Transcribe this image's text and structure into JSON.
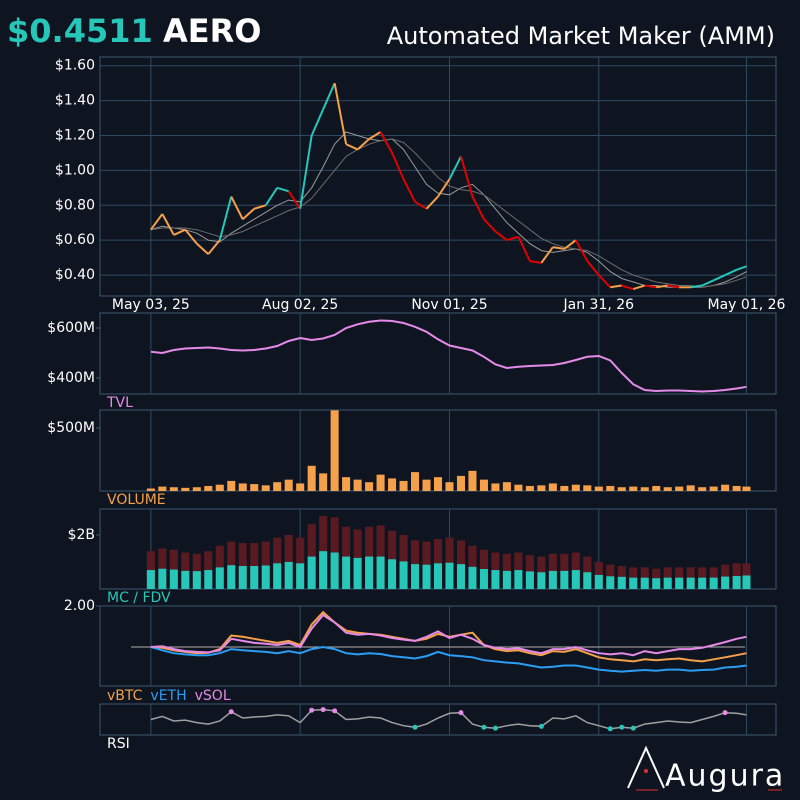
{
  "header": {
    "price": "$0.4511",
    "symbol": "AERO",
    "title": "Automated Market Maker (AMM)"
  },
  "watermark": "Augura",
  "chart_data": [
    {
      "type": "line",
      "x": [
        "2025-05-03",
        "2025-05-10",
        "2025-05-17",
        "2025-05-24",
        "2025-05-31",
        "2025-06-07",
        "2025-06-14",
        "2025-06-21",
        "2025-06-28",
        "2025-07-05",
        "2025-07-12",
        "2025-07-19",
        "2025-07-26",
        "2025-08-02",
        "2025-08-09",
        "2025-08-16",
        "2025-08-23",
        "2025-08-30",
        "2025-09-06",
        "2025-09-13",
        "2025-09-20",
        "2025-09-27",
        "2025-10-04",
        "2025-10-11",
        "2025-10-18",
        "2025-10-25",
        "2025-11-01",
        "2025-11-08",
        "2025-11-15",
        "2025-11-22",
        "2025-11-29",
        "2025-12-06",
        "2025-12-13",
        "2025-12-20",
        "2025-12-27",
        "2026-01-03",
        "2026-01-10",
        "2026-01-17",
        "2026-01-24",
        "2026-01-31",
        "2026-02-07",
        "2026-02-14",
        "2026-02-21",
        "2026-02-28",
        "2026-03-07",
        "2026-03-14",
        "2026-03-21",
        "2026-03-28",
        "2026-04-04",
        "2026-04-11",
        "2026-04-18",
        "2026-04-25",
        "2026-05-01"
      ],
      "xlim": [
        "2025-04-02",
        "2026-05-19"
      ],
      "xticks": [
        {
          "value": "2025-05-03",
          "label": "May 03, 25"
        },
        {
          "value": "2025-08-02",
          "label": "Aug 02, 25"
        },
        {
          "value": "2025-11-01",
          "label": "Nov 01, 25"
        },
        {
          "value": "2026-01-31",
          "label": "Jan 31, 26"
        },
        {
          "value": "2026-05-01",
          "label": "May 01, 26"
        }
      ],
      "ylim": [
        0.28,
        1.65
      ],
      "yticks": [
        {
          "value": 0.4,
          "label": "$0.40"
        },
        {
          "value": 0.6,
          "label": "$0.60"
        },
        {
          "value": 0.8,
          "label": "$0.80"
        },
        {
          "value": 1.0,
          "label": "$1.00"
        },
        {
          "value": 1.2,
          "label": "$1.20"
        },
        {
          "value": 1.4,
          "label": "$1.40"
        },
        {
          "value": 1.6,
          "label": "$1.60"
        }
      ],
      "grid": true,
      "series": [
        {
          "values": [
            0.66,
            0.75,
            0.63,
            0.66,
            0.58,
            0.52,
            0.6,
            0.85,
            0.72,
            0.78,
            0.8,
            0.9,
            0.88,
            0.78,
            1.2,
            1.35,
            1.5,
            1.15,
            1.12,
            1.18,
            1.22,
            1.1,
            0.95,
            0.82,
            0.78,
            0.85,
            0.95,
            1.08,
            0.85,
            0.72,
            0.65,
            0.6,
            0.62,
            0.48,
            0.47,
            0.56,
            0.55,
            0.6,
            0.48,
            0.4,
            0.33,
            0.34,
            0.32,
            0.34,
            0.33,
            0.34,
            0.33,
            0.33,
            0.34,
            0.37,
            0.4,
            0.43,
            0.45
          ],
          "colors": [
            "#f5a04a",
            "#f5a04a",
            "#f5a04a",
            "#f5a04a",
            "#f5a04a",
            "#f5a04a",
            "#f5a04a",
            "#26c6b8",
            "#f5a04a",
            "#f5a04a",
            "#f5a04a",
            "#26c6b8",
            "#26c6b8",
            "#e00000",
            "#26c6b8",
            "#26c6b8",
            "#26c6b8",
            "#f5a04a",
            "#f5a04a",
            "#f5a04a",
            "#f5a04a",
            "#e00000",
            "#e00000",
            "#e00000",
            "#e00000",
            "#f5a04a",
            "#f5a04a",
            "#26c6b8",
            "#e00000",
            "#e00000",
            "#e00000",
            "#e00000",
            "#e00000",
            "#e00000",
            "#e00000",
            "#f5a04a",
            "#f5a04a",
            "#f5a04a",
            "#e00000",
            "#e00000",
            "#e00000",
            "#f5a04a",
            "#e00000",
            "#f5a04a",
            "#e00000",
            "#f5a04a",
            "#e00000",
            "#f5a04a",
            "#26c6b8",
            "#26c6b8",
            "#26c6b8",
            "#26c6b8",
            "#26c6b8"
          ]
        }
      ],
      "moving_averages": [
        {
          "color": "#9a9a9a",
          "values": [
            0.66,
            0.68,
            0.67,
            0.66,
            0.64,
            0.6,
            0.59,
            0.64,
            0.68,
            0.72,
            0.76,
            0.8,
            0.83,
            0.82,
            0.9,
            1.02,
            1.15,
            1.22,
            1.2,
            1.18,
            1.17,
            1.18,
            1.12,
            1.02,
            0.92,
            0.87,
            0.86,
            0.9,
            0.92,
            0.86,
            0.78,
            0.7,
            0.64,
            0.58,
            0.54,
            0.53,
            0.54,
            0.55,
            0.53,
            0.48,
            0.42,
            0.38,
            0.36,
            0.34,
            0.34,
            0.33,
            0.33,
            0.33,
            0.33,
            0.34,
            0.36,
            0.39,
            0.42
          ]
        },
        {
          "color": "#6c6c6c",
          "values": [
            0.66,
            0.67,
            0.67,
            0.67,
            0.66,
            0.64,
            0.62,
            0.63,
            0.65,
            0.68,
            0.71,
            0.74,
            0.77,
            0.79,
            0.84,
            0.92,
            1.0,
            1.08,
            1.12,
            1.15,
            1.17,
            1.18,
            1.16,
            1.1,
            1.03,
            0.96,
            0.91,
            0.89,
            0.88,
            0.86,
            0.81,
            0.76,
            0.71,
            0.66,
            0.61,
            0.58,
            0.56,
            0.55,
            0.54,
            0.51,
            0.47,
            0.43,
            0.4,
            0.38,
            0.36,
            0.35,
            0.34,
            0.34,
            0.33,
            0.34,
            0.35,
            0.37,
            0.39
          ]
        }
      ]
    },
    {
      "type": "line",
      "label": "TVL",
      "label_color": "#e58ae8",
      "color": "#e58ae8",
      "ylim": [
        336000000.0,
        660000000.0
      ],
      "yticks": [
        {
          "value": 400000000.0,
          "label": "$400M"
        },
        {
          "value": 600000000.0,
          "label": "$600M"
        }
      ],
      "values": [
        505000000.0,
        500000000.0,
        512000000.0,
        518000000.0,
        520000000.0,
        522000000.0,
        518000000.0,
        512000000.0,
        510000000.0,
        512000000.0,
        518000000.0,
        528000000.0,
        548000000.0,
        560000000.0,
        552000000.0,
        558000000.0,
        572000000.0,
        600000000.0,
        615000000.0,
        625000000.0,
        630000000.0,
        628000000.0,
        620000000.0,
        605000000.0,
        585000000.0,
        555000000.0,
        530000000.0,
        520000000.0,
        510000000.0,
        485000000.0,
        455000000.0,
        440000000.0,
        445000000.0,
        448000000.0,
        450000000.0,
        452000000.0,
        460000000.0,
        472000000.0,
        485000000.0,
        488000000.0,
        470000000.0,
        420000000.0,
        375000000.0,
        352000000.0,
        348000000.0,
        350000000.0,
        350000000.0,
        348000000.0,
        346000000.0,
        348000000.0,
        352000000.0,
        358000000.0,
        365000000.0
      ]
    },
    {
      "type": "bar",
      "label": "VOLUME",
      "label_color": "#f5a04a",
      "color": "#f5a04a",
      "ylim": [
        0,
        643000000.0
      ],
      "yticks": [
        {
          "value": 500000000.0,
          "label": "$500M"
        }
      ],
      "values": [
        20000000.0,
        35000000.0,
        30000000.0,
        25000000.0,
        30000000.0,
        40000000.0,
        50000000.0,
        80000000.0,
        60000000.0,
        55000000.0,
        45000000.0,
        70000000.0,
        90000000.0,
        60000000.0,
        200000000.0,
        140000000.0,
        640000000.0,
        110000000.0,
        90000000.0,
        70000000.0,
        130000000.0,
        100000000.0,
        80000000.0,
        150000000.0,
        90000000.0,
        110000000.0,
        70000000.0,
        120000000.0,
        160000000.0,
        90000000.0,
        60000000.0,
        70000000.0,
        50000000.0,
        40000000.0,
        45000000.0,
        60000000.0,
        40000000.0,
        50000000.0,
        45000000.0,
        35000000.0,
        40000000.0,
        30000000.0,
        35000000.0,
        30000000.0,
        40000000.0,
        30000000.0,
        35000000.0,
        45000000.0,
        30000000.0,
        35000000.0,
        50000000.0,
        40000000.0,
        35000000.0
      ]
    },
    {
      "type": "bar",
      "label": "MC / FDV",
      "label_color": "#26c6b8",
      "ylim": [
        0,
        2960000000.0
      ],
      "yticks": [
        {
          "value": 2000000000.0,
          "label": "$2B"
        }
      ],
      "series": [
        {
          "color": "#5a1a22",
          "values": [
            1400000000.0,
            1500000000.0,
            1450000000.0,
            1350000000.0,
            1300000000.0,
            1400000000.0,
            1600000000.0,
            1750000000.0,
            1700000000.0,
            1700000000.0,
            1750000000.0,
            1900000000.0,
            2000000000.0,
            1900000000.0,
            2400000000.0,
            2700000000.0,
            2650000000.0,
            2300000000.0,
            2200000000.0,
            2300000000.0,
            2350000000.0,
            2150000000.0,
            2000000000.0,
            1800000000.0,
            1750000000.0,
            1850000000.0,
            1900000000.0,
            1800000000.0,
            1600000000.0,
            1450000000.0,
            1350000000.0,
            1300000000.0,
            1350000000.0,
            1250000000.0,
            1200000000.0,
            1300000000.0,
            1300000000.0,
            1350000000.0,
            1200000000.0,
            1000000000.0,
            900000000.0,
            850000000.0,
            800000000.0,
            800000000.0,
            750000000.0,
            800000000.0,
            800000000.0,
            800000000.0,
            800000000.0,
            800000000.0,
            900000000.0,
            950000000.0,
            950000000.0
          ]
        },
        {
          "color": "#26c6b8",
          "values": [
            700000000.0,
            750000000.0,
            720000000.0,
            670000000.0,
            660000000.0,
            700000000.0,
            800000000.0,
            880000000.0,
            850000000.0,
            850000000.0,
            870000000.0,
            950000000.0,
            1000000000.0,
            950000000.0,
            1200000000.0,
            1400000000.0,
            1350000000.0,
            1200000000.0,
            1150000000.0,
            1200000000.0,
            1200000000.0,
            1100000000.0,
            1020000000.0,
            920000000.0,
            900000000.0,
            950000000.0,
            970000000.0,
            920000000.0,
            820000000.0,
            740000000.0,
            700000000.0,
            670000000.0,
            700000000.0,
            650000000.0,
            620000000.0,
            670000000.0,
            670000000.0,
            700000000.0,
            620000000.0,
            520000000.0,
            470000000.0,
            450000000.0,
            420000000.0,
            420000000.0,
            400000000.0,
            420000000.0,
            420000000.0,
            420000000.0,
            420000000.0,
            420000000.0,
            460000000.0,
            480000000.0,
            500000000.0
          ]
        }
      ]
    },
    {
      "type": "line",
      "ylim": [
        0.05,
        2.0
      ],
      "yticks": [
        {
          "value": 2,
          "label": "2.00"
        }
      ],
      "reference_line": 1,
      "series": [
        {
          "name": "vBTC",
          "color": "#f5a04a",
          "values": [
            1.0,
            0.98,
            0.92,
            0.88,
            0.85,
            0.86,
            0.95,
            1.28,
            1.25,
            1.2,
            1.15,
            1.1,
            1.15,
            1.05,
            1.55,
            1.85,
            1.6,
            1.4,
            1.35,
            1.32,
            1.3,
            1.25,
            1.2,
            1.15,
            1.2,
            1.32,
            1.25,
            1.3,
            1.35,
            1.05,
            0.95,
            0.9,
            0.92,
            0.85,
            0.8,
            0.9,
            0.88,
            0.95,
            0.85,
            0.75,
            0.7,
            0.68,
            0.65,
            0.7,
            0.68,
            0.7,
            0.72,
            0.68,
            0.65,
            0.7,
            0.75,
            0.8,
            0.85
          ]
        },
        {
          "name": "vETH",
          "color": "#2a9df4",
          "values": [
            1.0,
            0.92,
            0.85,
            0.82,
            0.8,
            0.8,
            0.85,
            0.95,
            0.92,
            0.9,
            0.88,
            0.85,
            0.9,
            0.85,
            0.95,
            1.0,
            0.95,
            0.85,
            0.82,
            0.85,
            0.83,
            0.78,
            0.75,
            0.72,
            0.78,
            0.88,
            0.8,
            0.78,
            0.75,
            0.68,
            0.65,
            0.62,
            0.6,
            0.55,
            0.5,
            0.52,
            0.55,
            0.55,
            0.5,
            0.45,
            0.42,
            0.4,
            0.42,
            0.44,
            0.42,
            0.45,
            0.45,
            0.42,
            0.44,
            0.45,
            0.5,
            0.52,
            0.55
          ]
        },
        {
          "name": "vSOL",
          "color": "#e58ae8",
          "values": [
            1.0,
            1.02,
            0.95,
            0.9,
            0.88,
            0.87,
            0.92,
            1.2,
            1.15,
            1.1,
            1.08,
            1.05,
            1.1,
            1.0,
            1.45,
            1.78,
            1.6,
            1.35,
            1.3,
            1.32,
            1.28,
            1.22,
            1.18,
            1.15,
            1.25,
            1.38,
            1.22,
            1.3,
            1.2,
            1.05,
            0.98,
            0.95,
            0.97,
            0.9,
            0.85,
            0.95,
            0.95,
            1.0,
            0.92,
            0.85,
            0.82,
            0.85,
            0.8,
            0.9,
            0.85,
            0.9,
            0.95,
            0.95,
            0.98,
            1.05,
            1.12,
            1.2,
            1.25
          ]
        }
      ]
    },
    {
      "type": "line",
      "label": "RSI",
      "label_color": "#ffffff",
      "color": "#a0a0a0",
      "ylim": [
        0,
        100
      ],
      "overbought": 70,
      "oversold": 30,
      "overbought_color": "#e58ae8",
      "oversold_color": "#26c6b8",
      "values": [
        50,
        60,
        45,
        48,
        40,
        35,
        45,
        75,
        55,
        58,
        60,
        65,
        62,
        40,
        80,
        82,
        78,
        50,
        52,
        58,
        55,
        40,
        30,
        25,
        35,
        55,
        70,
        72,
        35,
        25,
        22,
        30,
        35,
        30,
        28,
        55,
        52,
        62,
        40,
        30,
        20,
        25,
        22,
        35,
        40,
        45,
        42,
        40,
        50,
        60,
        72,
        70,
        65
      ]
    }
  ]
}
